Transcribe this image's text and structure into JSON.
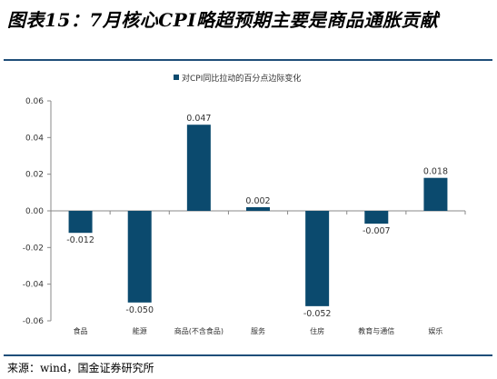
{
  "figure_title": "图表15：7月核心CPI略超预期主要是商品通胀贡献",
  "source_note": "来源：wind，国金证券研究所",
  "colors": {
    "bar": "#0b4a6e",
    "rule": "#1f4e79",
    "axis": "#888888"
  },
  "chart_data": {
    "type": "bar",
    "title": "",
    "xlabel": "",
    "ylabel": "",
    "legend": {
      "placement": "top-center",
      "label": "对CPI同比拉动的百分点边际变化"
    },
    "categories": [
      "食品",
      "能源",
      "商品(不含食品)",
      "服务",
      "住房",
      "教育与通信",
      "娱乐"
    ],
    "values": [
      -0.012,
      -0.05,
      0.047,
      0.002,
      -0.052,
      -0.007,
      0.018
    ],
    "data_labels": [
      "-0.012",
      "-0.050",
      "0.047",
      "0.002",
      "-0.052",
      "-0.007",
      "0.018"
    ],
    "ylim": [
      -0.06,
      0.06
    ],
    "yticks": [
      0.06,
      0.04,
      0.02,
      0.0,
      -0.02,
      -0.04,
      -0.06
    ],
    "ytick_labels": [
      "0.06",
      "0.04",
      "0.02",
      "0.00",
      "-0.02",
      "-0.04",
      "-0.06"
    ],
    "grid": false
  }
}
